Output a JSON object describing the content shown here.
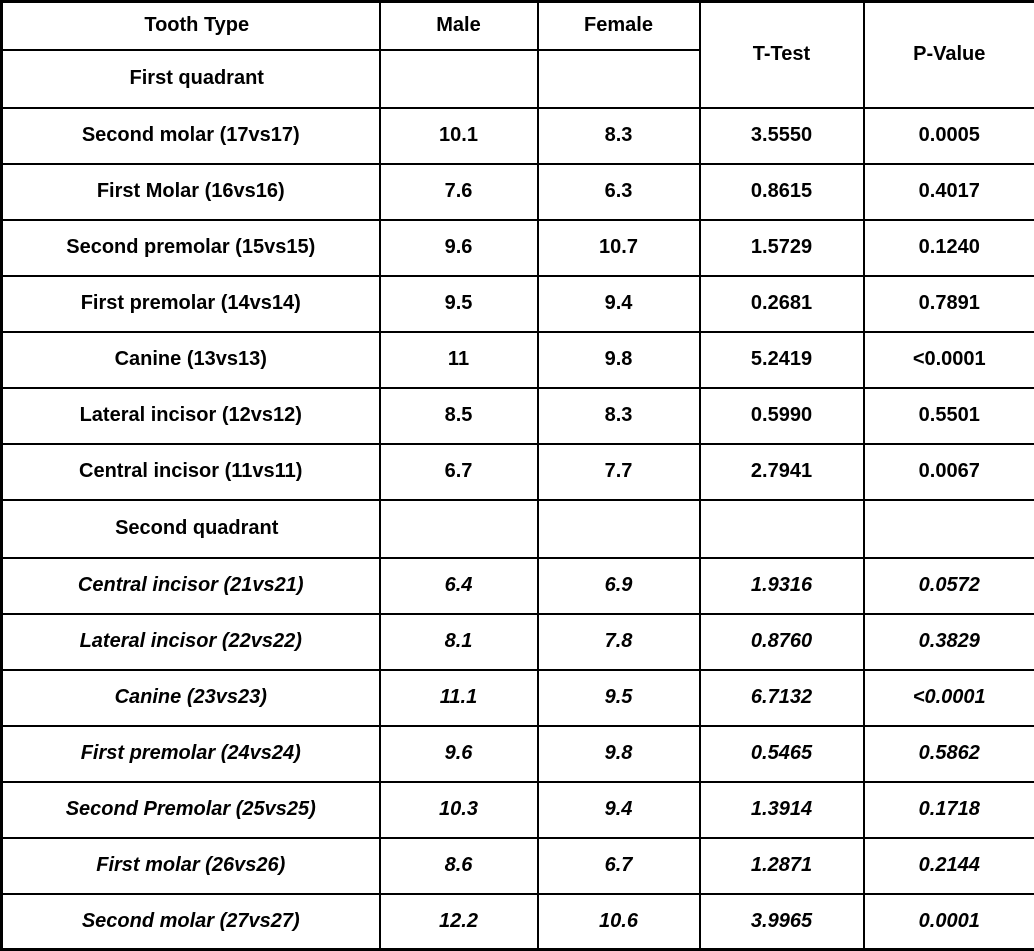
{
  "chart_data": {
    "type": "table",
    "columns": [
      "Tooth Type",
      "Male",
      "Female",
      "T-Test",
      "P-Value"
    ],
    "sections": [
      {
        "label": "First quadrant",
        "italic": false,
        "rows": [
          {
            "tooth": "Second molar (17vs17)",
            "male": "10.1",
            "female": "8.3",
            "t_test": "3.5550",
            "p_value": "0.0005"
          },
          {
            "tooth": "First Molar (16vs16)",
            "male": "7.6",
            "female": "6.3",
            "t_test": "0.8615",
            "p_value": "0.4017"
          },
          {
            "tooth": "Second premolar (15vs15)",
            "male": "9.6",
            "female": "10.7",
            "t_test": "1.5729",
            "p_value": "0.1240"
          },
          {
            "tooth": "First premolar (14vs14)",
            "male": "9.5",
            "female": "9.4",
            "t_test": "0.2681",
            "p_value": "0.7891"
          },
          {
            "tooth": "Canine (13vs13)",
            "male": "11",
            "female": "9.8",
            "t_test": "5.2419",
            "p_value": "<0.0001"
          },
          {
            "tooth": "Lateral incisor (12vs12)",
            "male": "8.5",
            "female": "8.3",
            "t_test": "0.5990",
            "p_value": "0.5501"
          },
          {
            "tooth": "Central incisor (11vs11)",
            "male": "6.7",
            "female": "7.7",
            "t_test": "2.7941",
            "p_value": "0.0067"
          }
        ]
      },
      {
        "label": "Second quadrant",
        "italic": true,
        "rows": [
          {
            "tooth": "Central incisor (21vs21)",
            "male": "6.4",
            "female": "6.9",
            "t_test": "1.9316",
            "p_value": "0.0572"
          },
          {
            "tooth": "Lateral incisor (22vs22)",
            "male": "8.1",
            "female": "7.8",
            "t_test": "0.8760",
            "p_value": "0.3829"
          },
          {
            "tooth": "Canine (23vs23)",
            "male": "11.1",
            "female": "9.5",
            "t_test": "6.7132",
            "p_value": "<0.0001"
          },
          {
            "tooth": "First premolar (24vs24)",
            "male": "9.6",
            "female": "9.8",
            "t_test": "0.5465",
            "p_value": "0.5862"
          },
          {
            "tooth": "Second Premolar (25vs25)",
            "male": "10.3",
            "female": "9.4",
            "t_test": "1.3914",
            "p_value": "0.1718"
          },
          {
            "tooth": "First molar (26vs26)",
            "male": "8.6",
            "female": "6.7",
            "t_test": "1.2871",
            "p_value": "0.2144"
          },
          {
            "tooth": "Second molar (27vs27)",
            "male": "12.2",
            "female": "10.6",
            "t_test": "3.9965",
            "p_value": "0.0001"
          }
        ]
      }
    ],
    "layout": {
      "border_color": "#000000",
      "background_color": "#ffffff",
      "text_color": "#000000",
      "header_merged_columns": [
        "T-Test",
        "P-Value"
      ]
    }
  }
}
